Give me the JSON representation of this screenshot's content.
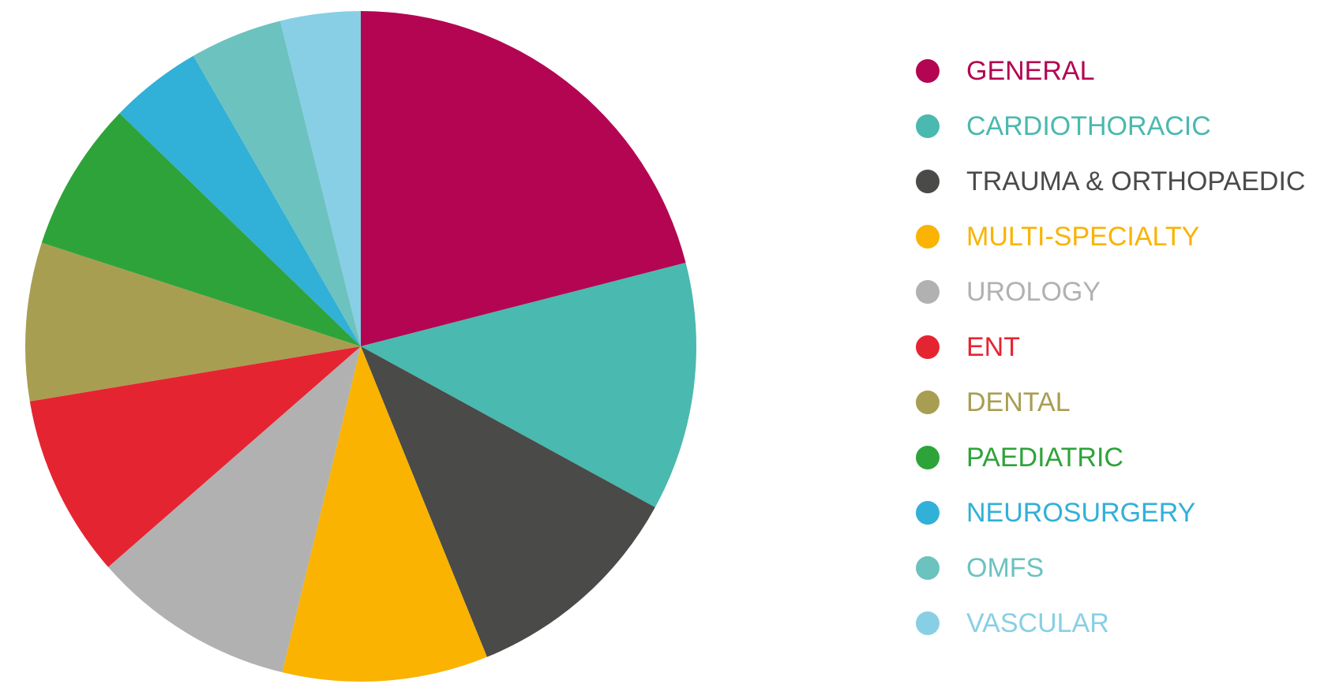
{
  "chart_data": {
    "type": "pie",
    "legend": "right",
    "slices": [
      {
        "label": "GENERAL",
        "value": 21.2,
        "color": "#B30552"
      },
      {
        "label": "CARDIOTHORACIC",
        "value": 12.1,
        "color": "#4AB9AF"
      },
      {
        "label": "TRAUMA & ORTHOPAEDIC",
        "value": 11.0,
        "color": "#4A4A49"
      },
      {
        "label": "MULTI-SPECIALTY",
        "value": 10.0,
        "color": "#F9B300"
      },
      {
        "label": "UROLOGY",
        "value": 9.9,
        "color": "#B1B1B1"
      },
      {
        "label": "ENT",
        "value": 8.9,
        "color": "#E52432"
      },
      {
        "label": "DENTAL",
        "value": 7.7,
        "color": "#A89E51"
      },
      {
        "label": "PAEDIATRIC",
        "value": 7.3,
        "color": "#2EA339"
      },
      {
        "label": "NEUROSURGERY",
        "value": 4.5,
        "color": "#31B0D8"
      },
      {
        "label": "OMFS",
        "value": 4.5,
        "color": "#6CC2BF"
      },
      {
        "label": "VASCULAR",
        "value": 3.9,
        "color": "#88CFE5"
      }
    ]
  }
}
